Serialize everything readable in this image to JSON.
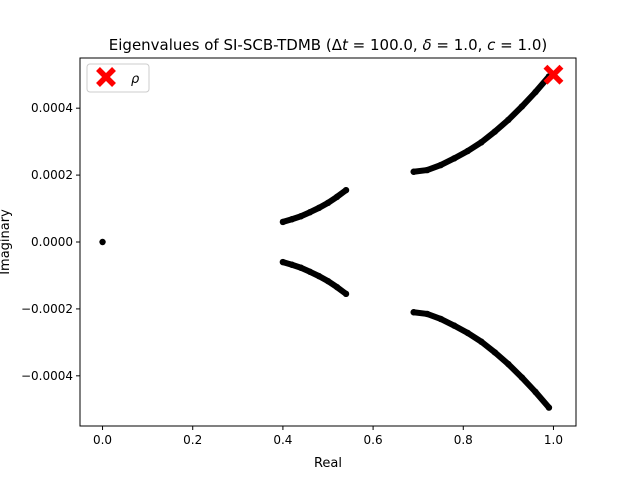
{
  "chart_data": {
    "type": "scatter",
    "title": "Eigenvalues of SI-SCB-TDMB (Δt = 100.0, δ = 1.0, c = 1.0)",
    "xlabel": "Real",
    "ylabel": "Imaginary",
    "xlim": [
      -0.05,
      1.05
    ],
    "ylim": [
      -0.00055,
      0.00055
    ],
    "xticks": [
      0.0,
      0.2,
      0.4,
      0.6,
      0.8,
      1.0
    ],
    "xtick_labels": [
      "0.0",
      "0.2",
      "0.4",
      "0.6",
      "0.8",
      "1.0"
    ],
    "yticks": [
      -0.0004,
      -0.0002,
      0.0,
      0.0002,
      0.0004
    ],
    "ytick_labels": [
      "−0.0004",
      "−0.0002",
      "0.0000",
      "0.0002",
      "0.0004"
    ],
    "grid": false,
    "legend_position": "top-left",
    "series": [
      {
        "kind": "eigenvalues",
        "color": "#000000",
        "points": [
          [
            0.0,
            0.0
          ],
          [
            0.4,
            6e-05
          ],
          [
            0.42,
            6.8e-05
          ],
          [
            0.44,
            7.7e-05
          ],
          [
            0.46,
            8.9e-05
          ],
          [
            0.48,
            0.000102
          ],
          [
            0.5,
            0.000117
          ],
          [
            0.52,
            0.000135
          ],
          [
            0.54,
            0.000155
          ],
          [
            0.4,
            -6e-05
          ],
          [
            0.42,
            -6.8e-05
          ],
          [
            0.44,
            -7.7e-05
          ],
          [
            0.46,
            -8.9e-05
          ],
          [
            0.48,
            -0.000102
          ],
          [
            0.5,
            -0.000117
          ],
          [
            0.52,
            -0.000135
          ],
          [
            0.54,
            -0.000155
          ],
          [
            0.69,
            0.00021
          ],
          [
            0.72,
            0.000215
          ],
          [
            0.75,
            0.00023
          ],
          [
            0.78,
            0.00025
          ],
          [
            0.81,
            0.000272
          ],
          [
            0.84,
            0.000298
          ],
          [
            0.87,
            0.00033
          ],
          [
            0.9,
            0.000365
          ],
          [
            0.93,
            0.000405
          ],
          [
            0.96,
            0.000448
          ],
          [
            0.99,
            0.000495
          ],
          [
            0.69,
            -0.00021
          ],
          [
            0.72,
            -0.000215
          ],
          [
            0.75,
            -0.00023
          ],
          [
            0.78,
            -0.00025
          ],
          [
            0.81,
            -0.000272
          ],
          [
            0.84,
            -0.000298
          ],
          [
            0.87,
            -0.00033
          ],
          [
            0.9,
            -0.000365
          ],
          [
            0.93,
            -0.000405
          ],
          [
            0.96,
            -0.000448
          ],
          [
            0.99,
            -0.000495
          ]
        ]
      },
      {
        "name": "ρ",
        "kind": "spectral-radius",
        "marker": "X",
        "color": "#ff0000",
        "points": [
          [
            1.0,
            0.0005
          ]
        ]
      }
    ]
  }
}
